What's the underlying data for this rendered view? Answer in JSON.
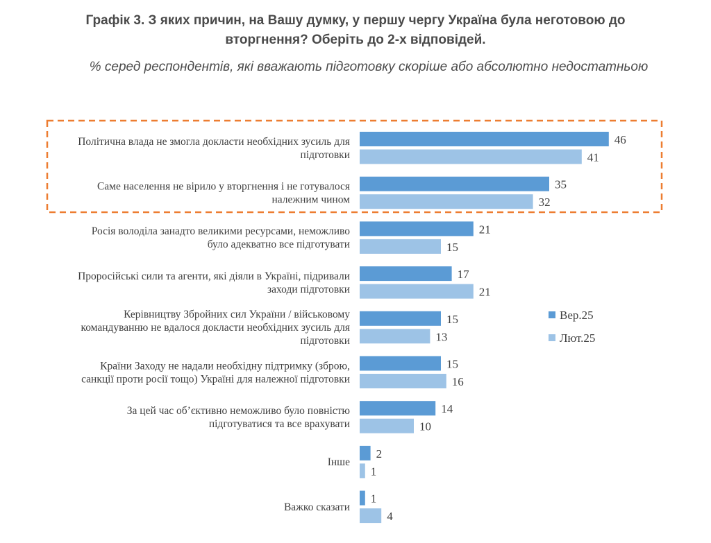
{
  "header": {
    "title_line1": "Графік 3. З яких причин, на Вашу думку, у першу чергу Україна була неготовою до",
    "title_line2": "вторгнення? Оберіть до 2-х відповідей.",
    "subtitle": "% серед респондентів, які вважають підготовку скоріше або абсолютно недостатньою"
  },
  "chart_data": {
    "type": "bar",
    "orientation": "horizontal",
    "categories": [
      [
        "Політична влада не змогла докласти необхідних зусиль для",
        "підготовки"
      ],
      [
        "Саме населення не вірило у вторгнення і не готувалося",
        "належним чином"
      ],
      [
        "Росія володіла занадто великими ресурсами, неможливо",
        "було адекватно все підготувати"
      ],
      [
        "Проросійські сили та агенти, які діяли в Україні, підривали",
        "заходи підготовки"
      ],
      [
        "Керівництву Збройних сил України / військовому",
        "командуванню не вдалося докласти необхідних зусиль для",
        "підготовки"
      ],
      [
        "Країни Заходу не надали необхідну підтримку (зброю,",
        "санкції проти росії тощо) Україні для належної підготовки"
      ],
      [
        "За цей час об’єктивно неможливо було повністю",
        "підготуватися та все врахувати"
      ],
      [
        "Інше"
      ],
      [
        "Важко сказати"
      ]
    ],
    "series": [
      {
        "name": "Вер.25",
        "color": "#5b9bd5",
        "values": [
          46,
          35,
          21,
          17,
          15,
          15,
          14,
          2,
          1
        ]
      },
      {
        "name": "Лют.25",
        "color": "#9dc3e6",
        "values": [
          41,
          32,
          15,
          21,
          13,
          16,
          10,
          1,
          4
        ]
      }
    ],
    "highlight": {
      "categories": [
        0,
        1
      ],
      "style": "dashed",
      "color": "#ed7d31"
    },
    "legend": {
      "position": "right"
    }
  }
}
